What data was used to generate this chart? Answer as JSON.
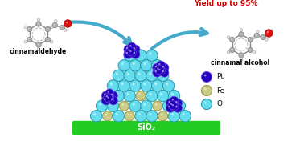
{
  "bg_color": "#ffffff",
  "sio2_color": "#22cc22",
  "sio2_text": "SiO₂",
  "sio2_text_color": "#ffffff",
  "o_color": "#66ddee",
  "o_edge_color": "#2299aa",
  "fe_color": "#cccc88",
  "fe_edge_color": "#999944",
  "pt_color": "#2200bb",
  "pt_edge_color": "#6644dd",
  "label_cinnamaldehyde": "cinnamaldehyde",
  "label_cinnamalcohol": "cinnamal alcohol",
  "yield_text": "Yield up to 95%",
  "yield_color": "#cc0000",
  "legend_labels": [
    "Pt",
    "Fe",
    "O"
  ],
  "legend_colors": [
    "#2200bb",
    "#cccc88",
    "#66ddee"
  ],
  "legend_edge_colors": [
    "#6644dd",
    "#999944",
    "#2299aa"
  ],
  "arrow_color": "#44aacc",
  "grey_atom": "#b0b0b0",
  "grey_edge": "#808080",
  "red_atom": "#dd1111",
  "red_edge": "#aa0000",
  "bond_color": "#888888",
  "white_atom": "#e8e8e8",
  "white_edge": "#aaaaaa"
}
